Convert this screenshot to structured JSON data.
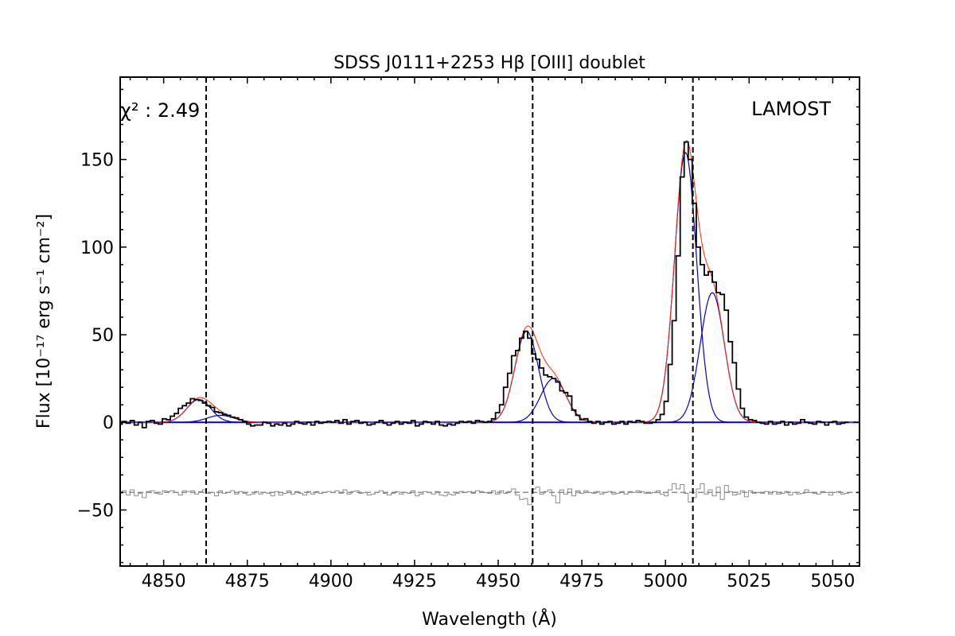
{
  "chart_data": {
    "type": "line",
    "title": "SDSS J0111+2253 Hβ [OIII] doublet",
    "xlabel": "Wavelength (Å)",
    "ylabel": "Flux [10⁻¹⁷ erg s⁻¹ cm⁻²]",
    "xlim": [
      4837,
      5058
    ],
    "ylim": [
      -82,
      197
    ],
    "x_ticks": [
      4850,
      4875,
      4900,
      4925,
      4950,
      4975,
      5000,
      5025,
      5050
    ],
    "x_tick_labels": [
      "4850",
      "4875",
      "4900",
      "4925",
      "4950",
      "4975",
      "5000",
      "5025",
      "5050"
    ],
    "y_ticks": [
      -50,
      0,
      50,
      100,
      150
    ],
    "y_tick_labels": [
      "−50",
      "0",
      "50",
      "100",
      "150"
    ],
    "grid": false,
    "annotations": {
      "chi2": "χ² :  2.49",
      "instrument": "LAMOST"
    },
    "vertical_lines": [
      4862.7,
      4960.3,
      5008.2
    ],
    "residual_offset": -40,
    "colors": {
      "observed": "#000000",
      "total_model": "#ff2a00",
      "components": "#0000dd",
      "continuum": "#0000dd",
      "residual": "#8a8a8a",
      "marker_lines": "#000000"
    },
    "components": [
      {
        "center": 4860.5,
        "amplitude": 13,
        "sigma": 3.6
      },
      {
        "center": 4867.0,
        "amplitude": 4,
        "sigma": 4.0
      },
      {
        "center": 4958.5,
        "amplitude": 52,
        "sigma": 3.5
      },
      {
        "center": 4966.5,
        "amplitude": 25,
        "sigma": 3.8
      },
      {
        "center": 5006.0,
        "amplitude": 154,
        "sigma": 3.3
      },
      {
        "center": 5014.0,
        "amplitude": 74,
        "sigma": 3.6
      }
    ],
    "series": [
      {
        "name": "",
        "step": 1.2,
        "x": [
          4837.0,
          4838.2,
          4839.4,
          4840.6,
          4841.8,
          4843.0,
          4844.2,
          4845.4,
          4846.6,
          4847.8,
          4849.0,
          4850.2,
          4851.4,
          4852.6,
          4853.8,
          4855.0,
          4856.2,
          4857.4,
          4858.6,
          4859.8,
          4861.0,
          4862.2,
          4863.4,
          4864.6,
          4865.8,
          4867.0,
          4868.2,
          4869.4,
          4870.6,
          4871.8,
          4873.0,
          4874.2,
          4875.4,
          4876.6,
          4877.8,
          4879.0,
          4880.2,
          4881.4,
          4882.6,
          4883.8,
          4885.0,
          4886.2,
          4887.4,
          4888.6,
          4889.8,
          4891.0,
          4892.2,
          4893.4,
          4894.6,
          4895.8,
          4897.0,
          4898.2,
          4899.4,
          4900.6,
          4901.8,
          4903.0,
          4904.2,
          4905.4,
          4906.6,
          4907.8,
          4909.0,
          4910.2,
          4911.4,
          4912.6,
          4913.8,
          4915.0,
          4916.2,
          4917.4,
          4918.6,
          4919.8,
          4921.0,
          4922.2,
          4923.4,
          4924.6,
          4925.8,
          4927.0,
          4928.2,
          4929.4,
          4930.6,
          4931.8,
          4933.0,
          4934.2,
          4935.4,
          4936.6,
          4937.8,
          4939.0,
          4940.2,
          4941.4,
          4942.6,
          4943.8,
          4945.0,
          4946.2,
          4947.4,
          4948.6,
          4949.8,
          4951.0,
          4952.2,
          4953.4,
          4954.6,
          4955.8,
          4957.0,
          4958.2,
          4959.4,
          4960.6,
          4961.8,
          4963.0,
          4964.2,
          4965.4,
          4966.6,
          4967.8,
          4969.0,
          4970.2,
          4971.4,
          4972.6,
          4973.8,
          4975.0,
          4976.2,
          4977.4,
          4978.6,
          4979.8,
          4981.0,
          4982.2,
          4983.4,
          4984.6,
          4985.8,
          4987.0,
          4988.2,
          4989.4,
          4990.6,
          4991.8,
          4993.0,
          4994.2,
          4995.4,
          4996.6,
          4997.8,
          4999.0,
          5000.2,
          5001.4,
          5002.6,
          5003.8,
          5005.0,
          5006.2,
          5007.4,
          5008.6,
          5009.8,
          5011.0,
          5012.2,
          5013.4,
          5014.6,
          5015.8,
          5017.0,
          5018.2,
          5019.4,
          5020.6,
          5021.8,
          5023.0,
          5024.2,
          5025.4,
          5026.6,
          5027.8,
          5029.0,
          5030.2,
          5031.4,
          5032.6,
          5033.8,
          5035.0,
          5036.2,
          5037.4,
          5038.6,
          5039.8,
          5041.0,
          5042.2,
          5043.4,
          5044.6,
          5045.8,
          5047.0,
          5048.2,
          5049.4,
          5050.6,
          5051.8,
          5053.0,
          5054.2,
          5055.4,
          5056.6
        ],
        "observed": [
          -1.0,
          0.5,
          -0.5,
          1.0,
          -1.5,
          0.0,
          -3.0,
          0.5,
          1.0,
          -0.5,
          -1.0,
          2.0,
          1.5,
          3.5,
          5.0,
          8.0,
          9.5,
          11.0,
          13.5,
          13.0,
          12.5,
          11.0,
          9.5,
          8.5,
          6.0,
          5.5,
          4.5,
          4.0,
          3.0,
          2.5,
          1.5,
          0.5,
          -1.0,
          -2.0,
          -1.5,
          -1.5,
          0.0,
          -0.5,
          -2.0,
          -1.0,
          -1.5,
          -0.5,
          -2.0,
          -1.0,
          0.5,
          -0.5,
          -1.0,
          0.0,
          -1.5,
          0.5,
          -0.5,
          0.0,
          0.5,
          0.0,
          1.0,
          -0.5,
          1.5,
          -1.0,
          0.5,
          1.0,
          -0.5,
          0.0,
          -1.5,
          -1.0,
          0.0,
          1.0,
          -0.5,
          -1.5,
          -0.5,
          0.5,
          -1.0,
          0.0,
          -0.5,
          1.0,
          -2.0,
          -1.0,
          0.5,
          0.0,
          -1.0,
          0.5,
          -1.5,
          -2.0,
          -1.0,
          -1.5,
          -0.5,
          0.5,
          0.0,
          0.5,
          -0.5,
          1.0,
          0.5,
          0.0,
          0.5,
          2.0,
          5.5,
          10.0,
          20.0,
          28.0,
          38.0,
          41.0,
          48.0,
          52.0,
          48.0,
          39.0,
          36.0,
          31.0,
          27.0,
          26.0,
          25.0,
          23.0,
          18.0,
          17.0,
          15.0,
          7.0,
          4.0,
          1.5,
          2.0,
          0.5,
          -0.5,
          0.5,
          -1.0,
          0.0,
          0.5,
          -1.0,
          -0.5,
          0.5,
          -1.0,
          0.5,
          0.0,
          1.0,
          0.5,
          -0.5,
          -0.5,
          0.0,
          1.5,
          4.5,
          12.0,
          33.0,
          58.0,
          95.0,
          140.0,
          160.0,
          150.0,
          125.0,
          100.0,
          90.0,
          84.0,
          86.0,
          80.0,
          74.0,
          73.0,
          64.0,
          46.0,
          34.0,
          19.0,
          8.0,
          3.0,
          1.5,
          1.0,
          0.0,
          -0.5,
          -1.0,
          0.5,
          -1.0,
          -0.5,
          0.5,
          -1.5,
          0.0,
          -1.0,
          -0.5,
          1.5,
          0.0,
          -0.5,
          -1.0,
          0.5,
          0.0,
          -1.5,
          0.0,
          0.5,
          -1.0,
          -0.5,
          0.0
        ],
        "residual": [
          -0.5,
          1.0,
          -1.5,
          1.5,
          -2.0,
          -0.5,
          -3.0,
          0.5,
          1.0,
          -0.5,
          -1.0,
          1.0,
          0.5,
          1.0,
          0.0,
          -1.5,
          1.0,
          0.5,
          1.0,
          -1.0,
          0.5,
          1.5,
          -0.5,
          0.0,
          -2.0,
          1.0,
          -0.5,
          0.0,
          1.0,
          -1.0,
          0.5,
          -0.5,
          -1.5,
          -1.0,
          0.5,
          -1.0,
          0.0,
          -0.5,
          -2.0,
          0.5,
          -1.5,
          -0.5,
          1.0,
          -1.0,
          0.5,
          -0.5,
          -1.5,
          0.5,
          -1.0,
          0.5,
          -0.5,
          0.0,
          0.5,
          0.0,
          1.0,
          -0.5,
          1.5,
          -1.0,
          0.5,
          1.0,
          -0.5,
          0.0,
          -1.5,
          -1.0,
          0.0,
          1.0,
          -0.5,
          -1.5,
          -0.5,
          0.5,
          -1.0,
          0.0,
          -0.5,
          1.0,
          -2.0,
          -1.0,
          0.5,
          0.0,
          -1.0,
          0.5,
          -1.5,
          -2.0,
          -1.0,
          -1.5,
          -0.5,
          0.5,
          0.0,
          0.5,
          -0.5,
          1.0,
          0.5,
          0.0,
          -0.5,
          1.0,
          -1.0,
          1.0,
          -0.5,
          0.5,
          2.0,
          -1.5,
          -4.0,
          -3.5,
          -7.0,
          2.0,
          3.0,
          -1.0,
          0.5,
          1.5,
          -2.0,
          -6.0,
          1.5,
          -1.0,
          2.0,
          -2.0,
          1.0,
          -0.5,
          1.0,
          0.0,
          -0.5,
          0.5,
          -1.0,
          0.0,
          0.5,
          -1.0,
          -0.5,
          0.5,
          -1.0,
          0.5,
          0.0,
          1.0,
          0.5,
          -0.5,
          -0.5,
          0.0,
          1.0,
          -1.0,
          -2.0,
          1.5,
          5.0,
          2.0,
          4.5,
          -0.5,
          -5.5,
          -3.0,
          2.0,
          5.0,
          -1.0,
          1.5,
          -2.0,
          3.0,
          -4.0,
          4.0,
          0.5,
          -1.5,
          -1.0,
          1.0,
          -2.5,
          1.0,
          -0.5,
          0.0,
          -0.5,
          0.5,
          -1.0,
          0.5,
          -1.0,
          -0.5,
          0.5,
          -1.5,
          0.0,
          -1.0,
          -0.5,
          1.5,
          0.0,
          -0.5,
          -1.0,
          0.5,
          0.0,
          -1.5,
          0.0,
          0.5,
          -1.0,
          -0.5,
          0.0
        ]
      }
    ]
  }
}
